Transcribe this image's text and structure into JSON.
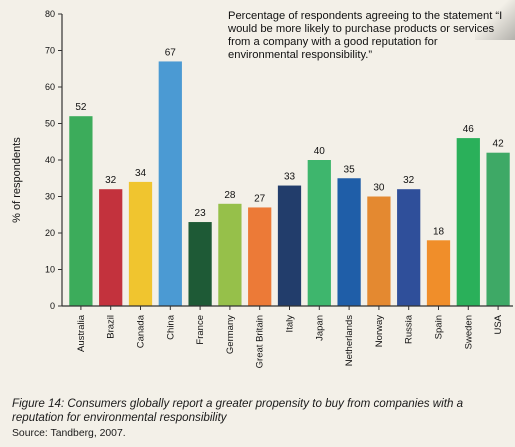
{
  "figure": {
    "caption": "Figure 14: Consumers globally report a greater propensity to buy from companies with a reputation for environmental responsibility",
    "source": "Source: Tandberg, 2007."
  },
  "chart_data": {
    "type": "bar",
    "annotation": "Percentage of respondents agreeing to the statement “I would be more likely to purchase products or services from a company with a good reputation for environmental responsibility.”",
    "ylabel": "% of respondents",
    "xlabel": "",
    "ylim": [
      0,
      80
    ],
    "yticks": [
      0,
      10,
      20,
      30,
      40,
      50,
      60,
      70,
      80
    ],
    "grid": false,
    "categories": [
      "Australia",
      "Brazil",
      "Canada",
      "China",
      "France",
      "Germany",
      "Great Britain",
      "Italy",
      "Japan",
      "Netherlands",
      "Norway",
      "Russia",
      "Spain",
      "Sweden",
      "USA"
    ],
    "values": [
      52,
      32,
      34,
      67,
      23,
      28,
      27,
      33,
      40,
      35,
      30,
      32,
      18,
      46,
      42
    ],
    "colors": [
      "#3cac5b",
      "#c3323d",
      "#f0c52f",
      "#4b9ad3",
      "#1e5a36",
      "#96c04a",
      "#ec7a37",
      "#223d6b",
      "#3eb66d",
      "#1f5ea8",
      "#e48930",
      "#2f4f9a",
      "#f08e2a",
      "#2ab05a",
      "#3ea966"
    ],
    "axis_color": "#333333"
  }
}
